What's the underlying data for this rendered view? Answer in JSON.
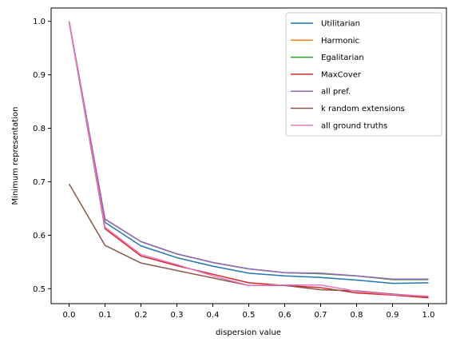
{
  "chart_data": {
    "type": "line",
    "title": "",
    "xlabel": "dispersion value",
    "ylabel": "Minimum representation",
    "xlim": [
      -0.05,
      1.05
    ],
    "ylim": [
      0.472,
      1.025
    ],
    "xticks": [
      "0.0",
      "0.1",
      "0.2",
      "0.3",
      "0.4",
      "0.5",
      "0.6",
      "0.7",
      "0.8",
      "0.9",
      "1.0"
    ],
    "yticks": [
      "0.5",
      "0.6",
      "0.7",
      "0.8",
      "0.9",
      "1.0"
    ],
    "legend_position": "top-right",
    "grid": false,
    "x": [
      0.0,
      0.1,
      0.2,
      0.3,
      0.4,
      0.5,
      0.6,
      0.7,
      0.8,
      0.9,
      1.0
    ],
    "series": [
      {
        "name": "Utilitarian",
        "color": "#1f77b4",
        "values": [
          1.0,
          0.624,
          0.58,
          0.558,
          0.542,
          0.529,
          0.524,
          0.521,
          0.516,
          0.51,
          0.511
        ]
      },
      {
        "name": "Harmonic",
        "color": "#ff7f0e",
        "values": [
          1.0,
          0.63,
          0.588,
          0.565,
          0.549,
          0.537,
          0.53,
          0.528,
          0.524,
          0.517,
          0.517
        ]
      },
      {
        "name": "Egalitarian",
        "color": "#2ca02c",
        "values": [
          1.0,
          0.63,
          0.588,
          0.565,
          0.549,
          0.537,
          0.53,
          0.528,
          0.524,
          0.517,
          0.517
        ]
      },
      {
        "name": "MaxCover",
        "color": "#d62728",
        "values": [
          1.0,
          0.612,
          0.561,
          0.543,
          0.527,
          0.511,
          0.506,
          0.502,
          0.492,
          0.488,
          0.483
        ]
      },
      {
        "name": "all pref.",
        "color": "#9467bd",
        "values": [
          1.0,
          0.63,
          0.588,
          0.565,
          0.549,
          0.537,
          0.53,
          0.529,
          0.524,
          0.518,
          0.518
        ]
      },
      {
        "name": "k random extensions",
        "color": "#8c564b",
        "values": [
          0.696,
          0.581,
          0.548,
          0.534,
          0.52,
          0.506,
          0.506,
          0.498,
          0.496,
          0.49,
          0.485
        ]
      },
      {
        "name": "all ground truths",
        "color": "#e377c2",
        "values": [
          1.0,
          0.615,
          0.564,
          0.545,
          0.524,
          0.506,
          0.507,
          0.507,
          0.495,
          0.489,
          0.486
        ]
      }
    ]
  }
}
